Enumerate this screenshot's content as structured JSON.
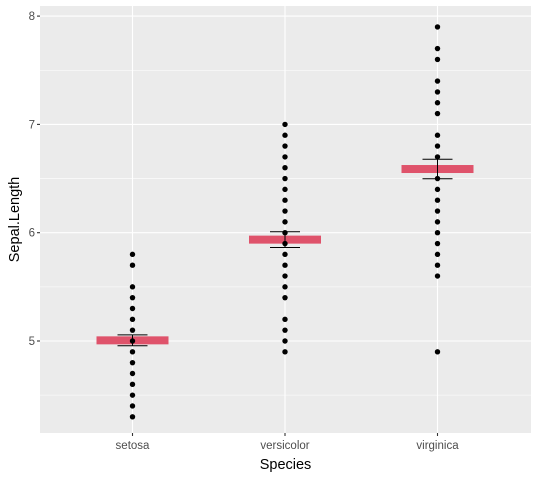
{
  "chart_data": {
    "type": "scatter",
    "title": "",
    "xlabel": "Species",
    "ylabel": "Sepal.Length",
    "categories": [
      "setosa",
      "versicolor",
      "virginica"
    ],
    "ylim": [
      4.3,
      8.0
    ],
    "y_ticks": [
      5,
      6,
      7,
      8
    ],
    "grid": true,
    "legend": "none",
    "mean_bar_color": "#df536b",
    "point_color": "#000000",
    "panel_background": "#ebebeb",
    "points": {
      "setosa": [
        4.3,
        4.4,
        4.5,
        4.6,
        4.7,
        4.8,
        4.9,
        5.0,
        5.1,
        5.2,
        5.3,
        5.4,
        5.5,
        5.7,
        5.8
      ],
      "versicolor": [
        4.9,
        5.0,
        5.1,
        5.2,
        5.4,
        5.5,
        5.6,
        5.7,
        5.8,
        5.9,
        6.0,
        6.1,
        6.2,
        6.3,
        6.4,
        6.5,
        6.6,
        6.7,
        6.8,
        6.9,
        7.0
      ],
      "virginica": [
        4.9,
        5.6,
        5.7,
        5.8,
        5.9,
        6.0,
        6.1,
        6.2,
        6.3,
        6.4,
        6.5,
        6.7,
        6.8,
        6.9,
        7.1,
        7.2,
        7.3,
        7.4,
        7.6,
        7.7,
        7.9
      ]
    },
    "means": {
      "setosa": 5.006,
      "versicolor": 5.936,
      "virginica": 6.588
    },
    "error_bars": {
      "setosa": [
        4.956,
        5.056
      ],
      "versicolor": [
        5.863,
        6.009
      ],
      "virginica": [
        6.498,
        6.678
      ]
    }
  }
}
